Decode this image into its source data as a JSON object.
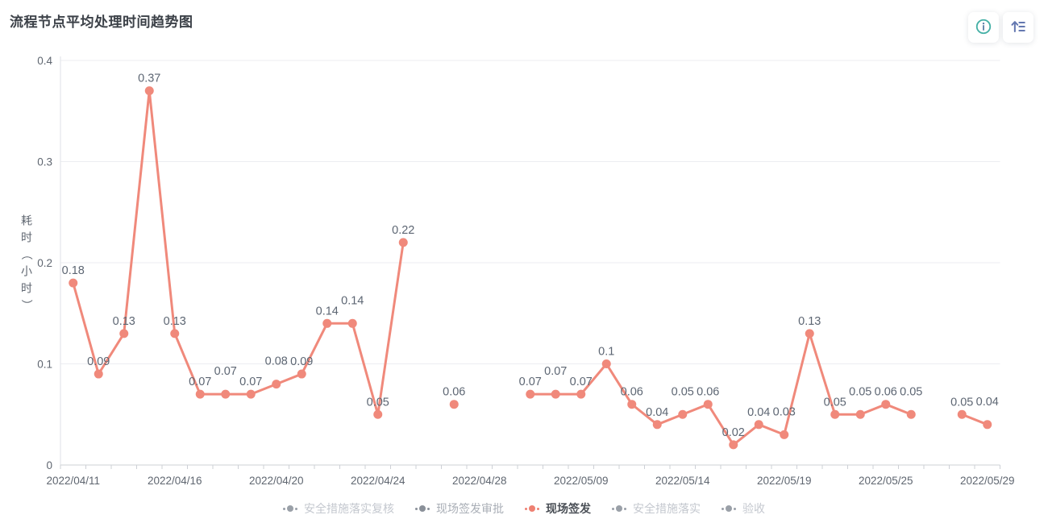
{
  "page": {
    "title": "流程节点平均处理时间趋势图"
  },
  "toolbar": {
    "buttons": [
      {
        "icon": "info-circle-icon",
        "color": "#45b0a6"
      },
      {
        "icon": "sort-ascending-list-icon",
        "color": "#6478b0"
      }
    ]
  },
  "chart_data": {
    "type": "line",
    "title": "流程节点平均处理时间趋势图",
    "x_axis_type": "category-index",
    "n_categories": 37,
    "x_tick_labels": [
      {
        "index": 0,
        "label": "2022/04/11"
      },
      {
        "index": 4,
        "label": "2022/04/16"
      },
      {
        "index": 8,
        "label": "2022/04/20"
      },
      {
        "index": 12,
        "label": "2022/04/24"
      },
      {
        "index": 16,
        "label": "2022/04/28"
      },
      {
        "index": 20,
        "label": "2022/05/09"
      },
      {
        "index": 24,
        "label": "2022/05/14"
      },
      {
        "index": 28,
        "label": "2022/05/19"
      },
      {
        "index": 32,
        "label": "2022/05/25"
      },
      {
        "index": 36,
        "label": "2022/05/29"
      }
    ],
    "ylabel": "耗时（小时）",
    "ylabel_vertical_chars": [
      "耗",
      "时",
      "（",
      "小",
      "时",
      "）"
    ],
    "y_ticks": [
      0,
      0.1,
      0.2,
      0.3,
      0.4
    ],
    "ylim": [
      0,
      0.4
    ],
    "grid": true,
    "series": [
      {
        "name": "现场签发",
        "color": "#f0897b",
        "show_point_labels": true,
        "values": [
          0.18,
          0.09,
          0.13,
          0.37,
          0.13,
          0.07,
          0.07,
          0.07,
          0.08,
          0.09,
          0.14,
          0.14,
          0.05,
          0.22,
          null,
          0.06,
          null,
          null,
          0.07,
          0.07,
          0.07,
          0.1,
          0.06,
          0.04,
          0.05,
          0.06,
          0.02,
          0.04,
          0.03,
          0.13,
          0.05,
          0.05,
          0.06,
          0.05,
          null,
          0.05,
          0.04
        ]
      }
    ],
    "legend": {
      "position": "bottom",
      "items": [
        {
          "label": "安全措施落实复核",
          "active": false,
          "text_color": "#c4c8cf",
          "marker_color": "#9aa0a8"
        },
        {
          "label": "现场签发审批",
          "active": false,
          "text_color": "#a9aeb6",
          "marker_color": "#8a9099"
        },
        {
          "label": "现场签发",
          "active": true,
          "text_color": "#4a4f56",
          "marker_color": "#ee8072"
        },
        {
          "label": "安全措施落实",
          "active": false,
          "text_color": "#c4c8cf",
          "marker_color": "#9aa0a8"
        },
        {
          "label": "验收",
          "active": false,
          "text_color": "#c4c8cf",
          "marker_color": "#9aa0a8"
        }
      ]
    },
    "colors": {
      "value_label": "#5d6673",
      "axis_label": "#5f6670",
      "grid_line": "#ecedf1",
      "axis_line": "#cdd0d6"
    }
  }
}
